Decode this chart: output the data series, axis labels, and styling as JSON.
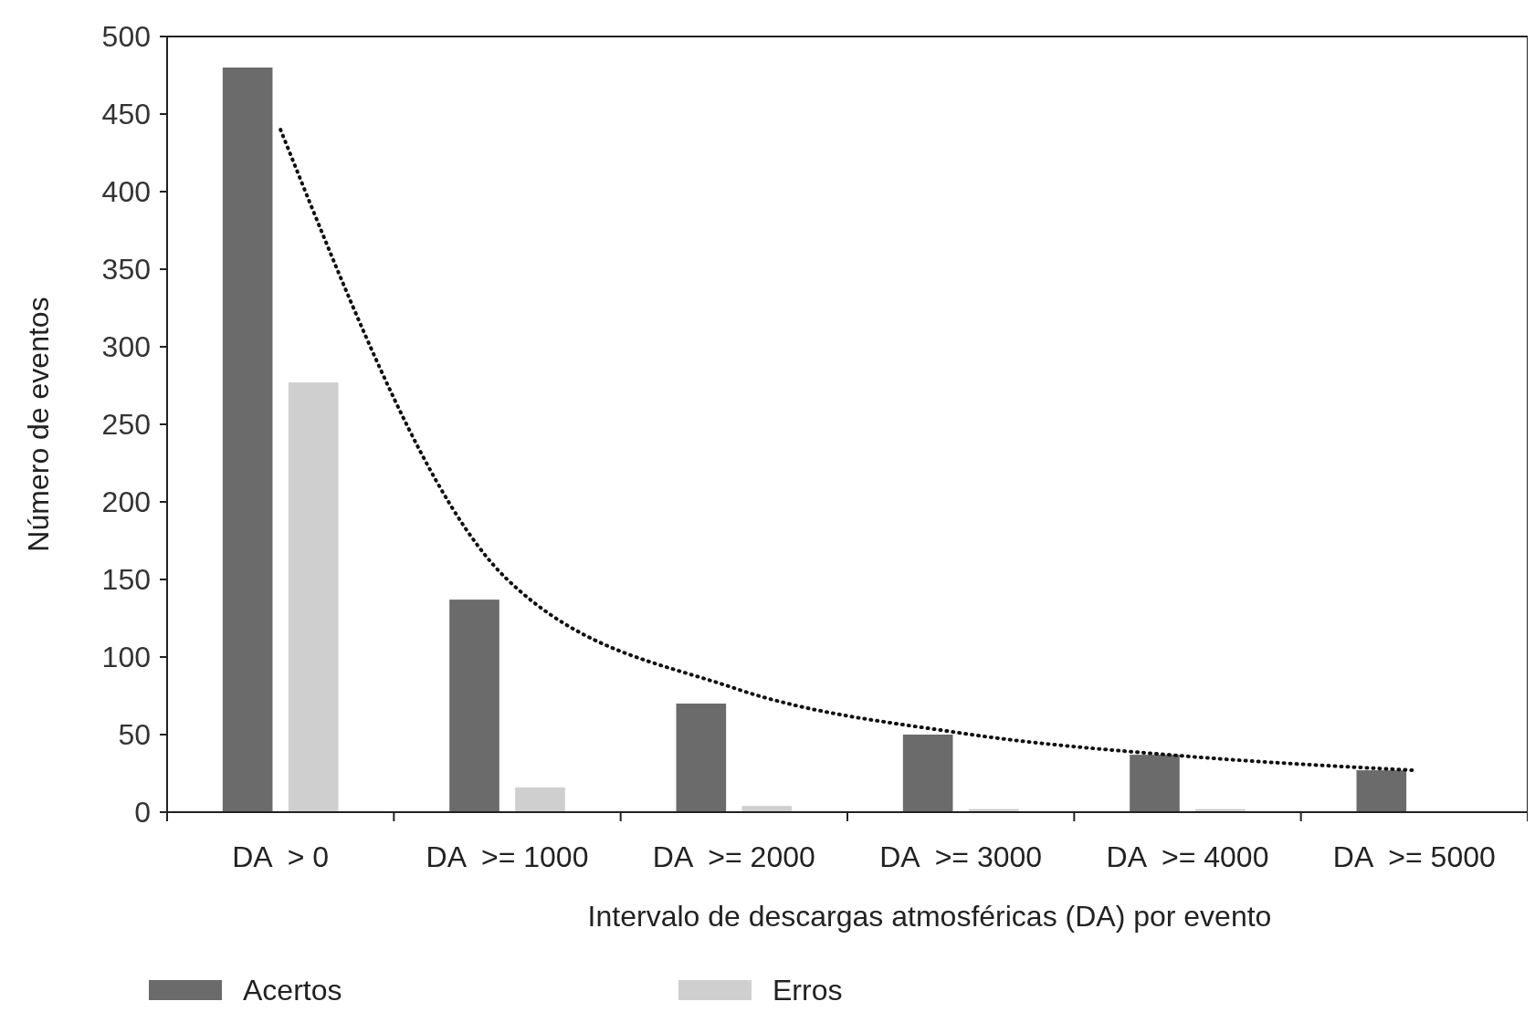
{
  "chart_data": {
    "type": "bar",
    "xlabel": "Intervalo de descargas atmosféricas (DA) por evento",
    "ylabel": "Número de eventos",
    "categories": [
      "DA  > 0",
      "DA  >= 1000",
      "DA  >= 2000",
      "DA  >= 3000",
      "DA  >= 4000",
      "DA  >= 5000"
    ],
    "series": [
      {
        "name": "Acertos",
        "color": "#6b6b6b",
        "values": [
          480,
          137,
          70,
          50,
          37,
          27
        ]
      },
      {
        "name": "Erros",
        "color": "#cfcfcf",
        "values": [
          277,
          16,
          4,
          2,
          2,
          0
        ]
      },
      {
        "type": "line",
        "color": "#111111",
        "line_style": "dotted",
        "values": [
          440,
          150,
          80,
          51,
          36,
          27
        ]
      }
    ],
    "ylim": [
      0,
      500
    ],
    "yticks": [
      0,
      50,
      100,
      150,
      200,
      250,
      300,
      350,
      400,
      450,
      500
    ],
    "grid": false,
    "legend": "bottom"
  }
}
